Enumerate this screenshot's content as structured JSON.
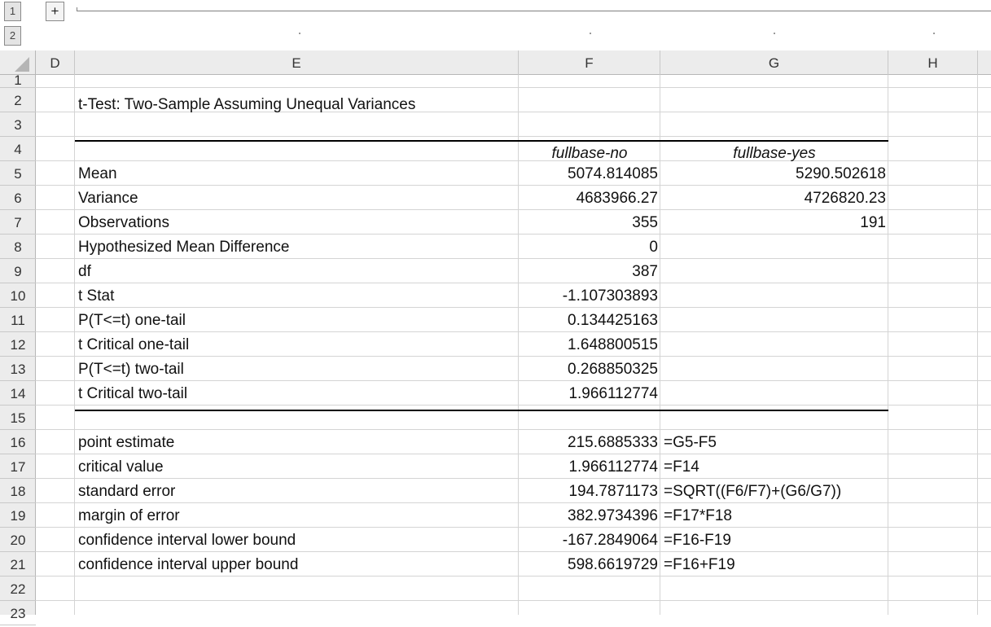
{
  "outline": {
    "levels": [
      "1",
      "2"
    ],
    "expand_label": "+"
  },
  "columns": [
    "D",
    "E",
    "F",
    "G",
    "H"
  ],
  "rows": [
    "1",
    "2",
    "3",
    "4",
    "5",
    "6",
    "7",
    "8",
    "9",
    "10",
    "11",
    "12",
    "13",
    "14",
    "15",
    "16",
    "17",
    "18",
    "19",
    "20",
    "21",
    "22",
    "23"
  ],
  "ttest": {
    "title": "t-Test: Two-Sample Assuming Unequal Variances",
    "headers": [
      "fullbase-no",
      "fullbase-yes"
    ],
    "stats": [
      {
        "label": "Mean",
        "f": "5074.814085",
        "g": "5290.502618"
      },
      {
        "label": "Variance",
        "f": "4683966.27",
        "g": "4726820.23"
      },
      {
        "label": "Observations",
        "f": "355",
        "g": "191"
      },
      {
        "label": "Hypothesized Mean Difference",
        "f": "0",
        "g": ""
      },
      {
        "label": "df",
        "f": "387",
        "g": ""
      },
      {
        "label": "t Stat",
        "f": "-1.107303893",
        "g": ""
      },
      {
        "label": "P(T<=t) one-tail",
        "f": "0.134425163",
        "g": ""
      },
      {
        "label": "t Critical one-tail",
        "f": "1.648800515",
        "g": ""
      },
      {
        "label": "P(T<=t) two-tail",
        "f": "0.268850325",
        "g": ""
      },
      {
        "label": "t Critical two-tail",
        "f": "1.966112774",
        "g": ""
      }
    ]
  },
  "calc": [
    {
      "label": "point estimate",
      "value": "215.6885333",
      "formula": "=G5-F5"
    },
    {
      "label": "critical value",
      "value": "1.966112774",
      "formula": "=F14"
    },
    {
      "label": "standard error",
      "value": "194.7871173",
      "formula": "=SQRT((F6/F7)+(G6/G7))"
    },
    {
      "label": "margin of error",
      "value": "382.9734396",
      "formula": "=F17*F18"
    },
    {
      "label": "confidence interval lower bound",
      "value": "-167.2849064",
      "formula": "=F16-F19"
    },
    {
      "label": "confidence interval upper bound",
      "value": "598.6619729",
      "formula": "=F16+F19"
    }
  ]
}
